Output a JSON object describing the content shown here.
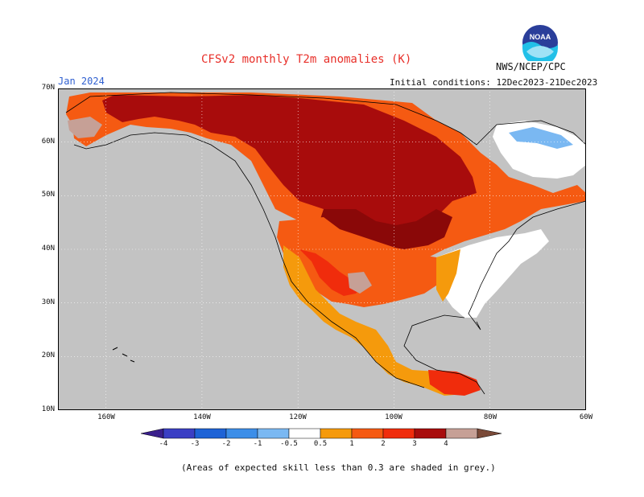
{
  "header": {
    "title": "CFSv2 monthly T2m anomalies (K)",
    "agency": "NWS/NCEP/CPC",
    "month": "Jan 2024",
    "initial_conditions": "Initial conditions: 12Dec2023-21Dec2023",
    "logo_text": "NOAA"
  },
  "axes": {
    "lat_labels": [
      "70N",
      "60N",
      "50N",
      "40N",
      "30N",
      "20N",
      "10N"
    ],
    "lon_labels": [
      "160W",
      "140W",
      "120W",
      "100W",
      "80W",
      "60W"
    ]
  },
  "legend": {
    "labels": [
      "-4",
      "-3",
      "-2",
      "-1",
      "-0.5",
      "0.5",
      "1",
      "2",
      "3",
      "4"
    ],
    "colors": {
      "below_-4": "#3a1f8c",
      "-4_-3": "#3b3fc4",
      "-3_-2": "#1e63d6",
      "-2_-1": "#3c8ee8",
      "-1_-0.5": "#7ab8f2",
      "-0.5_0.5": "#ffffff",
      "0.5_1": "#f59a0c",
      "1_2": "#f55a12",
      "2_3": "#f02c0c",
      "3_4": "#a80c0c",
      "4_5": "#c6a096",
      "above_5": "#7a4a38"
    }
  },
  "map_colors": {
    "no_skill": "#c3c3c3",
    "coastline": "#000000",
    "grid": "#ffffff"
  },
  "footnote": "(Areas of expected skill less than 0.3 are shaded in grey.)"
}
